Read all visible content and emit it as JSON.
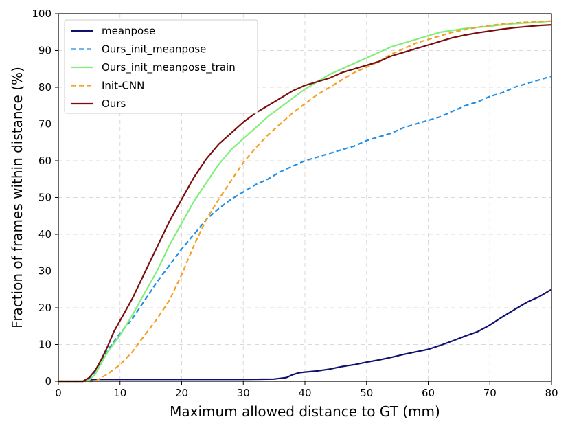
{
  "chart_data": {
    "type": "line",
    "title": "",
    "xlabel": "Maximum allowed distance to GT (mm)",
    "ylabel": "Fraction of frames within distance (%)",
    "xlim": [
      0,
      80
    ],
    "ylim": [
      0,
      100
    ],
    "xticks": [
      0,
      10,
      20,
      30,
      40,
      50,
      60,
      70,
      80
    ],
    "yticks": [
      0,
      10,
      20,
      30,
      40,
      50,
      60,
      70,
      80,
      90,
      100
    ],
    "grid": true,
    "legend_position": "top-left",
    "series": [
      {
        "name": "meanpose",
        "color": "#10106e",
        "dash": "solid",
        "x": [
          0,
          4,
          5,
          6,
          10,
          20,
          30,
          35,
          36,
          37,
          38,
          39,
          40,
          42,
          44,
          46,
          48,
          50,
          52,
          54,
          56,
          58,
          60,
          62,
          64,
          66,
          68,
          70,
          72,
          74,
          76,
          78,
          80
        ],
        "y": [
          0,
          0,
          0.4,
          0.5,
          0.5,
          0.5,
          0.5,
          0.6,
          0.8,
          1.0,
          1.8,
          2.3,
          2.5,
          2.8,
          3.3,
          4.0,
          4.5,
          5.2,
          5.8,
          6.5,
          7.3,
          8.0,
          8.7,
          9.8,
          11.0,
          12.3,
          13.5,
          15.3,
          17.5,
          19.5,
          21.5,
          23.0,
          25.0
        ]
      },
      {
        "name": "Ours_init_meanpose",
        "color": "#1f8ee6",
        "dash": "dashed",
        "x": [
          0,
          4,
          5,
          6,
          7,
          8,
          10,
          12,
          14,
          16,
          18,
          20,
          22,
          24,
          26,
          28,
          30,
          32,
          34,
          36,
          38,
          40,
          42,
          44,
          46,
          48,
          50,
          52,
          54,
          56,
          58,
          60,
          62,
          64,
          66,
          68,
          70,
          72,
          74,
          76,
          78,
          80
        ],
        "y": [
          0,
          0,
          0.5,
          2.5,
          5.5,
          8.5,
          13,
          17,
          22,
          27,
          31.5,
          36,
          40,
          44,
          47,
          49.5,
          51.5,
          53.5,
          55,
          57,
          58.5,
          60,
          61,
          62,
          63,
          64,
          65.5,
          66.5,
          67.5,
          69,
          70,
          71,
          72,
          73.5,
          75,
          76,
          77.5,
          78.5,
          80,
          81,
          82,
          83
        ]
      },
      {
        "name": "Ours_init_meanpose_train",
        "color": "#80f07a",
        "dash": "solid",
        "x": [
          0,
          4,
          5,
          6,
          7,
          8,
          10,
          12,
          14,
          16,
          18,
          20,
          22,
          24,
          26,
          28,
          30,
          32,
          34,
          36,
          38,
          40,
          42,
          44,
          46,
          48,
          50,
          52,
          54,
          56,
          58,
          60,
          62,
          64,
          66,
          68,
          70,
          72,
          74,
          76,
          78,
          80
        ],
        "y": [
          0,
          0,
          0.3,
          2,
          5,
          8,
          12.5,
          18,
          24,
          30,
          37,
          43,
          49,
          54,
          59,
          63,
          66,
          69,
          72,
          74.5,
          77,
          79.5,
          81.5,
          83.5,
          85,
          86.5,
          88,
          89.5,
          91,
          92,
          93,
          94,
          95,
          95.5,
          96,
          96.3,
          96.6,
          97,
          97.3,
          97.5,
          97.7,
          98
        ]
      },
      {
        "name": "Init-CNN",
        "color": "#f5a023",
        "dash": "dashed",
        "x": [
          0,
          6,
          7,
          8,
          10,
          12,
          14,
          16,
          18,
          20,
          22,
          24,
          26,
          28,
          30,
          32,
          34,
          36,
          38,
          40,
          42,
          44,
          46,
          48,
          50,
          52,
          54,
          56,
          58,
          60,
          62,
          64,
          66,
          68,
          70,
          72,
          74,
          76,
          78,
          80
        ],
        "y": [
          0,
          0,
          1,
          2,
          4.5,
          8,
          12.5,
          17,
          22,
          29,
          37,
          44,
          49.5,
          54.5,
          59.5,
          63.5,
          67,
          70,
          73,
          75.5,
          78,
          80,
          82,
          84,
          85.5,
          87,
          89,
          90.5,
          92,
          93,
          94,
          95,
          95.7,
          96.3,
          96.8,
          97.2,
          97.5,
          97.7,
          97.9,
          98
        ]
      },
      {
        "name": "Ours",
        "color": "#7b0d0d",
        "dash": "solid",
        "x": [
          0,
          4,
          5,
          6,
          7,
          8,
          9,
          10,
          12,
          14,
          16,
          18,
          20,
          22,
          24,
          26,
          28,
          30,
          32,
          34,
          36,
          38,
          40,
          42,
          44,
          46,
          48,
          50,
          52,
          54,
          56,
          58,
          60,
          62,
          64,
          66,
          68,
          70,
          72,
          74,
          76,
          78,
          80
        ],
        "y": [
          0,
          0,
          1,
          3,
          6,
          9.5,
          13.5,
          16.5,
          22.5,
          29.5,
          36.5,
          43.5,
          49.5,
          55.5,
          60.5,
          64.5,
          67.5,
          70.5,
          73,
          75,
          77,
          79,
          80.5,
          81.5,
          82.5,
          84,
          85,
          86,
          87,
          88.5,
          89.5,
          90.5,
          91.5,
          92.5,
          93.5,
          94.2,
          94.8,
          95.3,
          95.8,
          96.2,
          96.5,
          96.8,
          97
        ]
      }
    ]
  }
}
